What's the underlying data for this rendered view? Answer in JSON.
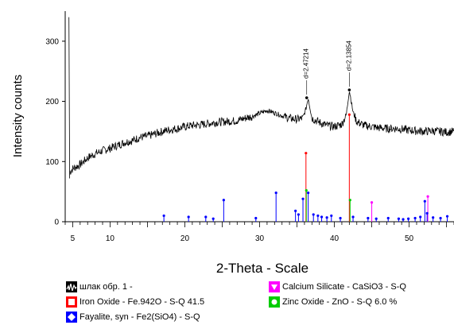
{
  "chart_data": {
    "type": "line",
    "xlabel": "2-Theta - Scale",
    "ylabel": "Intensity counts",
    "xlim": [
      4,
      56
    ],
    "ylim": [
      0,
      350
    ],
    "x_ticks": [
      5,
      10,
      20,
      30,
      40,
      50
    ],
    "y_ticks": [
      0,
      100,
      200,
      300
    ],
    "grid": false,
    "legend_position": "bottom",
    "measured": {
      "name": "шлак обр. 1 -",
      "color": "#000000",
      "x": [
        4.6,
        5,
        6,
        7,
        8,
        9,
        10,
        11,
        12,
        13,
        14,
        15,
        16,
        17,
        18,
        19,
        20,
        21,
        22,
        23,
        24,
        25,
        26,
        27,
        28,
        29,
        30,
        31,
        32,
        33,
        34,
        35,
        35.8,
        36.2,
        36.5,
        37,
        38,
        39,
        40,
        41,
        41.6,
        42.0,
        42.5,
        43,
        44,
        45,
        46,
        47,
        48,
        49,
        50,
        51,
        52,
        53,
        54,
        55,
        56
      ],
      "y": [
        82,
        88,
        95,
        106,
        113,
        118,
        122,
        127,
        132,
        135,
        140,
        142,
        146,
        150,
        153,
        155,
        158,
        160,
        161,
        163,
        165,
        166,
        167,
        168,
        172,
        175,
        180,
        185,
        181,
        176,
        172,
        170,
        172,
        188,
        206,
        172,
        165,
        160,
        158,
        162,
        178,
        219,
        182,
        166,
        160,
        158,
        156,
        155,
        155,
        154,
        152,
        151,
        150,
        151,
        150,
        149,
        150
      ],
      "start_spike": {
        "x": 4.5,
        "y": 340
      }
    },
    "peak_labels": [
      {
        "text": "d=2.47214",
        "x": 36.3,
        "y": 206
      },
      {
        "text": "d=2.13854",
        "x": 42.0,
        "y": 219
      }
    ],
    "reference_patterns": [
      {
        "name": "Iron Oxide - Fe.942O - S-Q 41.5",
        "color": "#ff0000",
        "marker": "square",
        "x": [
          36.2,
          42.0
        ],
        "y": [
          114,
          178
        ]
      },
      {
        "name": "Zinc Oxide - ZnO - S-Q 6.0 %",
        "color": "#00cc00",
        "marker": "circle",
        "x": [
          36.25,
          42.1
        ],
        "y": [
          52,
          36
        ]
      },
      {
        "name": "Calcium Silicate - CaSiO3 - S-Q",
        "color": "#ff00ff",
        "marker": "triangle-down",
        "x": [
          45.0,
          52.5
        ],
        "y": [
          32,
          42
        ]
      },
      {
        "name": "Fayalite, syn - Fe2(SiO4) - S-Q",
        "color": "#0000ff",
        "marker": "diamond",
        "x": [
          17.2,
          20.5,
          22.8,
          23.8,
          25.2,
          29.5,
          32.2,
          34.8,
          35.2,
          35.8,
          36.5,
          37.2,
          37.8,
          38.3,
          39.0,
          39.6,
          40.8,
          42.5,
          44.5,
          45.6,
          47.2,
          48.6,
          49.2,
          49.9,
          50.8,
          51.5,
          52.1,
          52.4,
          53.2,
          54.2,
          55.1
        ],
        "y": [
          10,
          8,
          8,
          5,
          36,
          6,
          48,
          18,
          12,
          38,
          48,
          12,
          10,
          8,
          7,
          10,
          6,
          8,
          6,
          5,
          6,
          5,
          4,
          5,
          6,
          8,
          34,
          14,
          7,
          6,
          9
        ]
      }
    ]
  }
}
